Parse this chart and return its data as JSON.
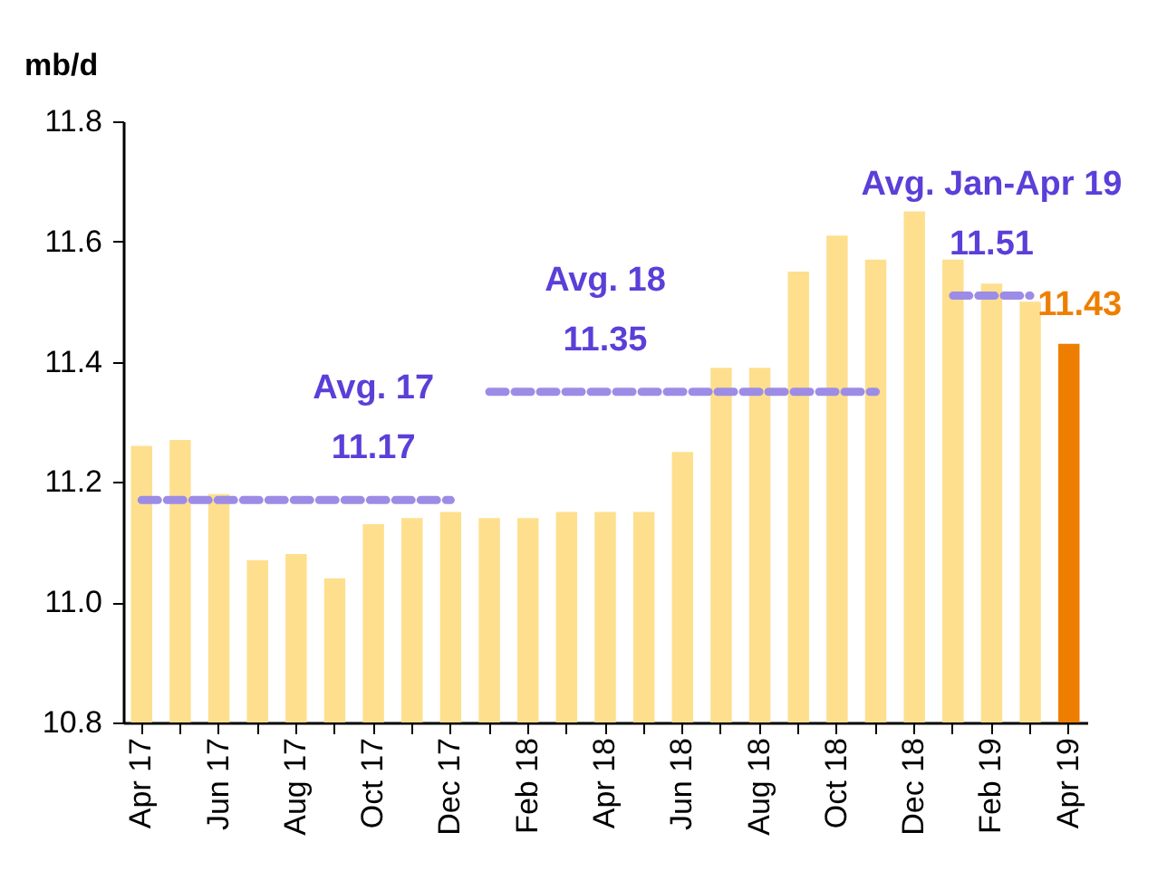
{
  "chart_data": {
    "type": "bar",
    "ylabel": "mb/d",
    "categories": [
      "Apr 17",
      null,
      "Jun 17",
      null,
      "Aug 17",
      null,
      "Oct 17",
      null,
      "Dec 17",
      null,
      "Feb 18",
      null,
      "Apr 18",
      null,
      "Jun 18",
      null,
      "Aug 18",
      null,
      "Oct 18",
      null,
      "Dec 18",
      null,
      "Feb 19",
      null,
      "Apr 19"
    ],
    "series": [
      {
        "values": [
          11.26,
          11.27,
          11.18,
          11.07,
          11.08,
          11.04,
          11.13,
          11.14,
          11.15,
          11.14,
          11.14,
          11.15,
          11.15,
          11.15,
          11.25,
          11.39,
          11.39,
          11.55,
          11.61,
          11.57,
          11.65,
          11.57,
          11.53,
          11.5,
          11.43
        ],
        "colors": [
          "#fedf8e",
          "#fedf8e",
          "#fedf8e",
          "#fedf8e",
          "#fedf8e",
          "#fedf8e",
          "#fedf8e",
          "#fedf8e",
          "#fedf8e",
          "#fedf8e",
          "#fedf8e",
          "#fedf8e",
          "#fedf8e",
          "#fedf8e",
          "#fedf8e",
          "#fedf8e",
          "#fedf8e",
          "#fedf8e",
          "#fedf8e",
          "#fedf8e",
          "#fedf8e",
          "#fedf8e",
          "#fedf8e",
          "#fedf8e",
          "#ee7e00"
        ],
        "value_labels": [
          null,
          null,
          null,
          null,
          null,
          null,
          null,
          null,
          null,
          null,
          null,
          null,
          null,
          null,
          null,
          null,
          null,
          null,
          null,
          null,
          null,
          null,
          null,
          null,
          "11.43"
        ]
      },
      {
        "type": "line",
        "color": "#9d8ce6",
        "line_style": "dashed",
        "values": [
          11.17,
          11.17,
          11.17,
          11.17,
          11.17,
          11.17,
          11.17,
          11.17,
          11.17,
          null,
          null,
          null,
          null,
          null,
          null,
          null,
          null,
          null,
          null,
          null,
          null,
          null,
          null,
          null,
          null
        ]
      },
      {
        "type": "line",
        "color": "#9d8ce6",
        "line_style": "dashed",
        "values": [
          null,
          null,
          null,
          null,
          null,
          null,
          null,
          null,
          null,
          11.35,
          11.35,
          11.35,
          11.35,
          11.35,
          11.35,
          11.35,
          11.35,
          11.35,
          11.35,
          11.35,
          null,
          null,
          null,
          null,
          null
        ]
      },
      {
        "type": "line",
        "color": "#9d8ce6",
        "line_style": "dashed",
        "values": [
          null,
          null,
          null,
          null,
          null,
          null,
          null,
          null,
          null,
          null,
          null,
          null,
          null,
          null,
          null,
          null,
          null,
          null,
          null,
          null,
          null,
          11.51,
          11.51,
          11.51,
          null
        ]
      }
    ],
    "ylim": [
      10.8,
      11.8
    ],
    "yticks": [
      10.8,
      {
        "value": 11,
        "label": "11.0"
      },
      11.2,
      11.4,
      11.6,
      11.8
    ],
    "annotations": [
      {
        "text": "Avg. 17",
        "x": "Oct 17",
        "y": 11.17
      },
      {
        "text": "11.17",
        "x": "Oct 17",
        "y": 11.17
      },
      {
        "text": "Avg. 18",
        "x": "Apr 18",
        "y": 11.35
      },
      {
        "text": "11.35",
        "x": "Apr 18",
        "y": 11.35
      },
      {
        "text": "Avg. Jan-Apr 19",
        "x": "Feb 19",
        "y": 11.51
      },
      {
        "text": "11.51",
        "x": "Feb 19",
        "y": 11.51
      }
    ]
  }
}
